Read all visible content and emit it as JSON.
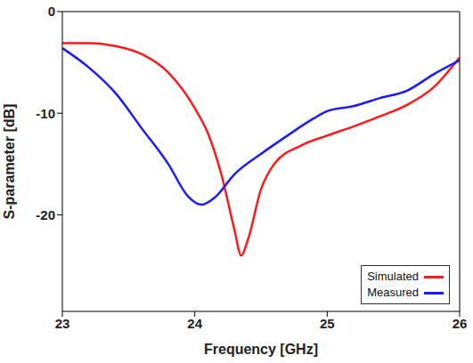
{
  "chart_data": {
    "type": "line",
    "xlabel": "Frequency [GHz]",
    "ylabel": "S-parameter [dB]",
    "xlim": [
      23,
      26
    ],
    "xticks": [
      23,
      24,
      25,
      26
    ],
    "ylim": [
      -29.5,
      0
    ],
    "yticks": [
      -20,
      -10,
      0
    ],
    "grid": false,
    "legend": "lower right",
    "series": [
      {
        "name": "Simulated",
        "color": "#ff1a1a",
        "x": [
          23,
          23.2,
          23.4,
          23.6,
          23.8,
          24.0,
          24.1,
          24.2,
          24.3,
          24.35,
          24.4,
          24.5,
          24.6,
          24.8,
          25.0,
          25.2,
          25.4,
          25.6,
          25.8,
          26
        ],
        "values": [
          -3.1,
          -3.1,
          -3.4,
          -4.2,
          -6,
          -9.5,
          -12,
          -16,
          -21.5,
          -24,
          -22.5,
          -17.5,
          -15,
          -13.2,
          -12.2,
          -11.3,
          -10.3,
          -9.2,
          -7.5,
          -4.5
        ]
      },
      {
        "name": "Measured",
        "color": "#1a1aff",
        "x": [
          23,
          23.2,
          23.4,
          23.6,
          23.8,
          23.95,
          24.05,
          24.15,
          24.3,
          24.5,
          24.7,
          24.9,
          25.0,
          25.2,
          25.4,
          25.6,
          25.8,
          26
        ],
        "values": [
          -3.6,
          -5.5,
          -8,
          -11.5,
          -15,
          -18.2,
          -19,
          -18.3,
          -16,
          -14,
          -12.2,
          -10.5,
          -9.8,
          -9.3,
          -8.5,
          -7.8,
          -6.2,
          -4.8
        ]
      }
    ]
  }
}
